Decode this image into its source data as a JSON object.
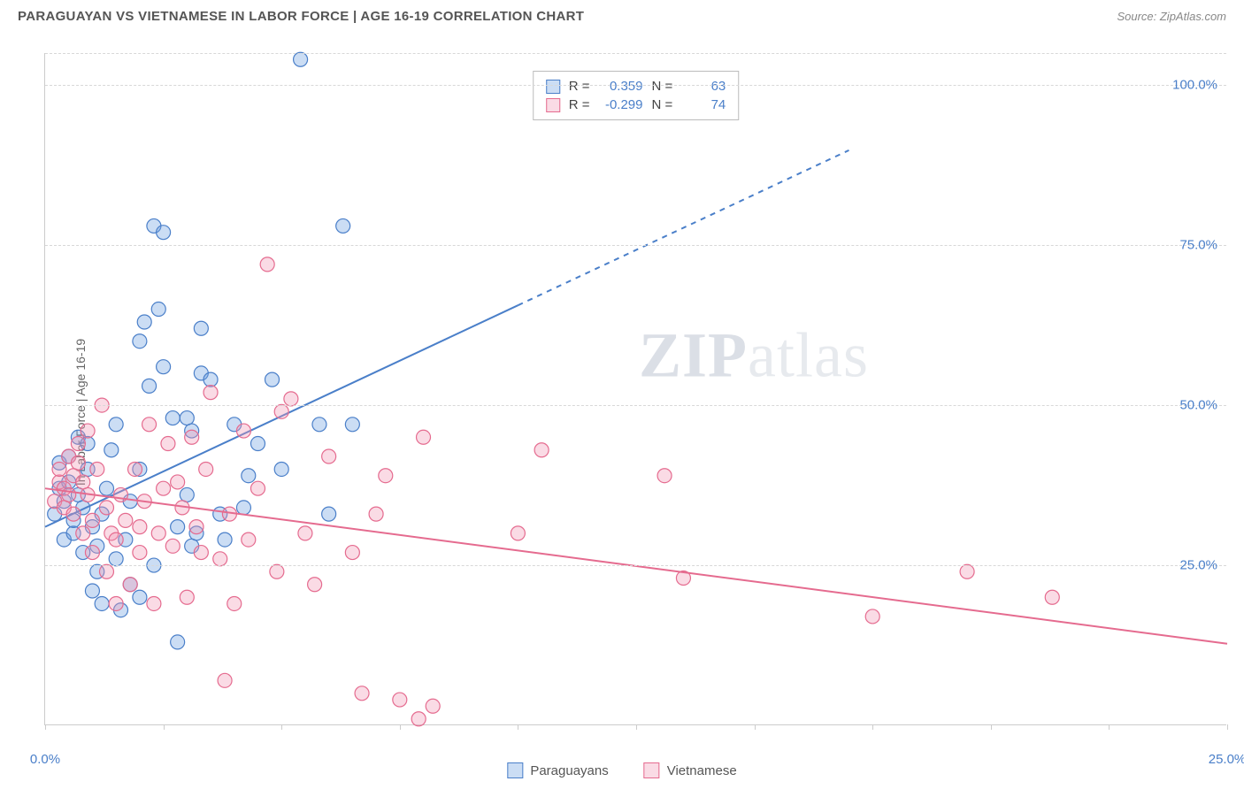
{
  "header": {
    "title": "PARAGUAYAN VS VIETNAMESE IN LABOR FORCE | AGE 16-19 CORRELATION CHART",
    "source": "Source: ZipAtlas.com"
  },
  "chart": {
    "type": "scatter",
    "y_axis_label": "In Labor Force | Age 16-19",
    "xlim": [
      0,
      25
    ],
    "ylim": [
      0,
      105
    ],
    "x_ticks": [
      0,
      2.5,
      5,
      7.5,
      10,
      12.5,
      15,
      17.5,
      20,
      22.5,
      25
    ],
    "x_tick_labels_shown": {
      "0": "0.0%",
      "25": "25.0%"
    },
    "y_gridlines": [
      25,
      50,
      75,
      100,
      105
    ],
    "y_tick_labels": {
      "25": "25.0%",
      "50": "50.0%",
      "75": "75.0%",
      "100": "100.0%"
    },
    "background_color": "#ffffff",
    "grid_color": "#d8d8d8",
    "axis_color": "#cccccc",
    "tick_label_color": "#4a7fc9",
    "marker_radius": 8,
    "marker_stroke_width": 1.2,
    "marker_fill_opacity": 0.35,
    "series": [
      {
        "name": "Paraguayans",
        "color": "#6b9fe0",
        "stroke_color": "#4a7fc9",
        "fill": "rgba(107,159,224,0.35)",
        "trend": {
          "slope": 3.46,
          "intercept": 31,
          "solid_x_end": 10,
          "dash_x_end": 17,
          "stroke_width": 2
        },
        "R": 0.359,
        "N": 63,
        "points": [
          [
            0.2,
            33
          ],
          [
            0.3,
            37
          ],
          [
            0.3,
            41
          ],
          [
            0.4,
            29
          ],
          [
            0.4,
            35
          ],
          [
            0.5,
            38
          ],
          [
            0.5,
            42
          ],
          [
            0.6,
            30
          ],
          [
            0.6,
            32
          ],
          [
            0.7,
            45
          ],
          [
            0.7,
            36
          ],
          [
            0.8,
            27
          ],
          [
            0.8,
            34
          ],
          [
            0.9,
            40
          ],
          [
            0.9,
            44
          ],
          [
            1.0,
            31
          ],
          [
            1.0,
            21
          ],
          [
            1.1,
            24
          ],
          [
            1.1,
            28
          ],
          [
            1.2,
            19
          ],
          [
            1.2,
            33
          ],
          [
            1.3,
            37
          ],
          [
            1.4,
            43
          ],
          [
            1.5,
            26
          ],
          [
            1.5,
            47
          ],
          [
            1.6,
            18
          ],
          [
            1.7,
            29
          ],
          [
            1.8,
            22
          ],
          [
            1.8,
            35
          ],
          [
            2.0,
            20
          ],
          [
            2.0,
            40
          ],
          [
            2.0,
            60
          ],
          [
            2.1,
            63
          ],
          [
            2.2,
            53
          ],
          [
            2.3,
            25
          ],
          [
            2.3,
            78
          ],
          [
            2.4,
            65
          ],
          [
            2.5,
            56
          ],
          [
            2.5,
            77
          ],
          [
            2.7,
            48
          ],
          [
            2.8,
            31
          ],
          [
            2.8,
            13
          ],
          [
            3.0,
            36
          ],
          [
            3.0,
            48
          ],
          [
            3.1,
            28
          ],
          [
            3.1,
            46
          ],
          [
            3.2,
            30
          ],
          [
            3.3,
            55
          ],
          [
            3.3,
            62
          ],
          [
            3.5,
            54
          ],
          [
            3.7,
            33
          ],
          [
            3.8,
            29
          ],
          [
            4.0,
            47
          ],
          [
            4.2,
            34
          ],
          [
            4.3,
            39
          ],
          [
            4.5,
            44
          ],
          [
            4.8,
            54
          ],
          [
            5.0,
            40
          ],
          [
            5.4,
            104
          ],
          [
            5.8,
            47
          ],
          [
            6.0,
            33
          ],
          [
            6.3,
            78
          ],
          [
            6.5,
            47
          ]
        ]
      },
      {
        "name": "Vietnamese",
        "color": "#f198b5",
        "stroke_color": "#e56b8f",
        "fill": "rgba(241,152,181,0.35)",
        "trend": {
          "slope": -0.97,
          "intercept": 37,
          "solid_x_end": 25,
          "dash_x_end": 25,
          "stroke_width": 2
        },
        "R": -0.299,
        "N": 74,
        "points": [
          [
            0.2,
            35
          ],
          [
            0.3,
            38
          ],
          [
            0.3,
            40
          ],
          [
            0.4,
            37
          ],
          [
            0.4,
            34
          ],
          [
            0.5,
            42
          ],
          [
            0.5,
            36
          ],
          [
            0.6,
            39
          ],
          [
            0.6,
            33
          ],
          [
            0.7,
            41
          ],
          [
            0.7,
            44
          ],
          [
            0.8,
            30
          ],
          [
            0.8,
            38
          ],
          [
            0.9,
            36
          ],
          [
            0.9,
            46
          ],
          [
            1.0,
            27
          ],
          [
            1.0,
            32
          ],
          [
            1.1,
            40
          ],
          [
            1.2,
            50
          ],
          [
            1.3,
            34
          ],
          [
            1.3,
            24
          ],
          [
            1.4,
            30
          ],
          [
            1.5,
            19
          ],
          [
            1.5,
            29
          ],
          [
            1.6,
            36
          ],
          [
            1.7,
            32
          ],
          [
            1.8,
            22
          ],
          [
            1.9,
            40
          ],
          [
            2.0,
            31
          ],
          [
            2.0,
            27
          ],
          [
            2.1,
            35
          ],
          [
            2.2,
            47
          ],
          [
            2.3,
            19
          ],
          [
            2.4,
            30
          ],
          [
            2.5,
            37
          ],
          [
            2.6,
            44
          ],
          [
            2.7,
            28
          ],
          [
            2.8,
            38
          ],
          [
            2.9,
            34
          ],
          [
            3.0,
            20
          ],
          [
            3.1,
            45
          ],
          [
            3.2,
            31
          ],
          [
            3.3,
            27
          ],
          [
            3.4,
            40
          ],
          [
            3.5,
            52
          ],
          [
            3.7,
            26
          ],
          [
            3.8,
            7
          ],
          [
            3.9,
            33
          ],
          [
            4.0,
            19
          ],
          [
            4.2,
            46
          ],
          [
            4.3,
            29
          ],
          [
            4.5,
            37
          ],
          [
            4.7,
            72
          ],
          [
            4.9,
            24
          ],
          [
            5.0,
            49
          ],
          [
            5.2,
            51
          ],
          [
            5.5,
            30
          ],
          [
            5.7,
            22
          ],
          [
            6.0,
            42
          ],
          [
            6.5,
            27
          ],
          [
            6.7,
            5
          ],
          [
            7.0,
            33
          ],
          [
            7.2,
            39
          ],
          [
            7.5,
            4
          ],
          [
            7.9,
            1
          ],
          [
            8.0,
            45
          ],
          [
            8.2,
            3
          ],
          [
            10.0,
            30
          ],
          [
            10.5,
            43
          ],
          [
            13.1,
            39
          ],
          [
            13.5,
            23
          ],
          [
            17.5,
            17
          ],
          [
            19.5,
            24
          ],
          [
            21.3,
            20
          ]
        ]
      }
    ],
    "legend_label_1": "Paraguayans",
    "legend_label_2": "Vietnamese",
    "watermark": {
      "zip": "ZIP",
      "atlas": "atlas"
    },
    "stats_r_label": "R =",
    "stats_n_label": "N ="
  }
}
